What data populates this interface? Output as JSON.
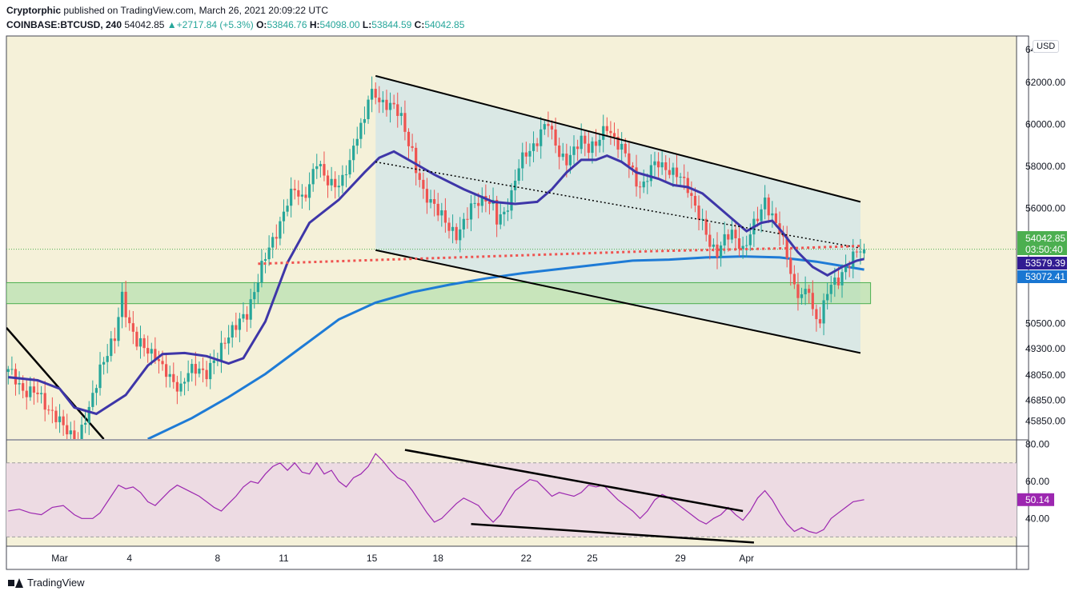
{
  "header": {
    "line1_author": "Cryptorphic",
    "line1_text": " published on TradingView.com, March 26, 2021 20:09:22 UTC",
    "symbol": "COINBASE:BTCUSD, 240",
    "last": "54042.85",
    "change": "+2717.84 (+5.3%)",
    "o_label": "O:",
    "o": "53846.76",
    "h_label": "H:",
    "h": "54098.00",
    "l_label": "L:",
    "l": "53844.59",
    "c_label": "C:",
    "c": "54042.85"
  },
  "currency": "USD",
  "price_axis": [
    "64",
    "62000.00",
    "60000.00",
    "58000.00",
    "56000.00",
    "54042.85",
    "03:50:40",
    "53579.39",
    "53072.41",
    "50500.00",
    "49300.00",
    "48050.00",
    "46850.00",
    "45850.00"
  ],
  "rsi_axis": [
    "80.00",
    "60.00",
    "50.14",
    "40.00"
  ],
  "time_axis": [
    "Mar",
    "4",
    "8",
    "11",
    "15",
    "18",
    "22",
    "25",
    "29",
    "Apr"
  ],
  "footer": {
    "brand": "TradingView"
  },
  "colors": {
    "bg": "#f5f1d9",
    "up": "#26a69a",
    "down": "#ef5350",
    "channel": "#d7e7e5",
    "support": "#b8e0b0",
    "ema_fast": "#3e36a8",
    "ema_slow": "#1e7bd6",
    "rsi_band": "#eddbe3",
    "rsi_line": "#9c27b0",
    "price_tag": "#4caf50",
    "ema_fast_tag": "#311b92",
    "ema_slow_tag": "#1976d2",
    "rsi_tag": "#9c27b0"
  },
  "chart_data": {
    "type": "candlestick",
    "title": "COINBASE:BTCUSD, 240",
    "series": [
      {
        "name": "BTCUSD candles",
        "close_last": 54042.85
      },
      {
        "name": "EMA fast",
        "last": 53579.39
      },
      {
        "name": "EMA slow",
        "last": 53072.41
      },
      {
        "name": "RSI",
        "last": 50.14
      }
    ],
    "ylim": [
      45000,
      64200
    ],
    "rsi_ylim": [
      25,
      82
    ],
    "rsi_band": [
      30,
      70
    ],
    "x_range": [
      "2021-02-25",
      "2021-04-03"
    ],
    "x_ticks": [
      "Mar",
      "4",
      "8",
      "11",
      "15",
      "18",
      "22",
      "25",
      "29",
      "Apr"
    ],
    "path": [
      [
        0,
        48200
      ],
      [
        4,
        47400
      ],
      [
        8,
        47100
      ],
      [
        12,
        46300
      ],
      [
        15,
        45500
      ],
      [
        19,
        45000
      ],
      [
        22,
        46300
      ],
      [
        25,
        48500
      ],
      [
        29,
        49700
      ],
      [
        31,
        51900
      ],
      [
        33,
        50500
      ],
      [
        35,
        49500
      ],
      [
        38,
        49300
      ],
      [
        40,
        49100
      ],
      [
        42,
        48250
      ],
      [
        44,
        47900
      ],
      [
        47,
        47500
      ],
      [
        49,
        48100
      ],
      [
        52,
        48400
      ],
      [
        54,
        48200
      ],
      [
        57,
        48800
      ],
      [
        59,
        49800
      ],
      [
        61,
        50300
      ],
      [
        63,
        50500
      ],
      [
        65,
        50900
      ],
      [
        67,
        52200
      ],
      [
        69,
        53200
      ],
      [
        72,
        54400
      ],
      [
        74,
        55400
      ],
      [
        76,
        56300
      ],
      [
        78,
        56800
      ],
      [
        80,
        56500
      ],
      [
        82,
        57200
      ],
      [
        84,
        58100
      ],
      [
        86,
        57500
      ],
      [
        88,
        57300
      ],
      [
        90,
        57100
      ],
      [
        91,
        57200
      ],
      [
        93,
        58200
      ],
      [
        95,
        59700
      ],
      [
        97,
        60200
      ],
      [
        98,
        61200
      ],
      [
        100,
        61400
      ],
      [
        101,
        61200
      ],
      [
        103,
        61000
      ],
      [
        105,
        60700
      ],
      [
        107,
        60300
      ],
      [
        108,
        59800
      ],
      [
        110,
        58700
      ],
      [
        111,
        57800
      ],
      [
        113,
        56600
      ],
      [
        116,
        56300
      ],
      [
        118,
        55600
      ],
      [
        120,
        54900
      ],
      [
        122,
        54800
      ],
      [
        124,
        55400
      ],
      [
        126,
        55900
      ],
      [
        128,
        56300
      ],
      [
        130,
        56600
      ],
      [
        132,
        56100
      ],
      [
        133,
        55300
      ],
      [
        135,
        55700
      ],
      [
        137,
        56800
      ],
      [
        139,
        58000
      ],
      [
        141,
        58500
      ],
      [
        143,
        59000
      ],
      [
        145,
        59700
      ],
      [
        147,
        60000
      ],
      [
        148,
        59400
      ],
      [
        150,
        58700
      ],
      [
        152,
        58300
      ],
      [
        154,
        58600
      ],
      [
        156,
        59300
      ],
      [
        158,
        59000
      ],
      [
        160,
        59000
      ],
      [
        161,
        59200
      ],
      [
        163,
        59900
      ],
      [
        165,
        59400
      ],
      [
        167,
        58800
      ],
      [
        169,
        58100
      ],
      [
        171,
        57300
      ],
      [
        173,
        57100
      ],
      [
        175,
        57800
      ],
      [
        177,
        58200
      ],
      [
        179,
        58000
      ],
      [
        181,
        57600
      ],
      [
        183,
        57400
      ],
      [
        185,
        57100
      ],
      [
        187,
        56100
      ],
      [
        189,
        55100
      ],
      [
        191,
        54300
      ],
      [
        193,
        54000
      ],
      [
        195,
        54500
      ],
      [
        197,
        54700
      ],
      [
        199,
        54400
      ],
      [
        200,
        54100
      ],
      [
        201,
        54400
      ],
      [
        203,
        55100
      ],
      [
        205,
        55900
      ],
      [
        206,
        56500
      ],
      [
        208,
        55600
      ],
      [
        210,
        54800
      ],
      [
        212,
        53800
      ],
      [
        214,
        52300
      ],
      [
        216,
        51700
      ],
      [
        218,
        52100
      ],
      [
        219,
        51000
      ],
      [
        221,
        50800
      ],
      [
        223,
        52000
      ],
      [
        226,
        52600
      ],
      [
        228,
        53300
      ],
      [
        230,
        53600
      ],
      [
        231,
        53850
      ],
      [
        233,
        54042.85
      ]
    ],
    "ema_fast": [
      [
        0,
        47950
      ],
      [
        8,
        47800
      ],
      [
        14,
        47400
      ],
      [
        18,
        46500
      ],
      [
        24,
        46200
      ],
      [
        32,
        47100
      ],
      [
        38,
        48500
      ],
      [
        42,
        49050
      ],
      [
        48,
        49100
      ],
      [
        54,
        48950
      ],
      [
        60,
        48600
      ],
      [
        64,
        48850
      ],
      [
        70,
        50600
      ],
      [
        76,
        53400
      ],
      [
        82,
        55300
      ],
      [
        90,
        56400
      ],
      [
        97,
        57700
      ],
      [
        101,
        58400
      ],
      [
        105,
        58700
      ],
      [
        110,
        58200
      ],
      [
        116,
        57600
      ],
      [
        124,
        56900
      ],
      [
        132,
        56300
      ],
      [
        138,
        56200
      ],
      [
        144,
        56300
      ],
      [
        148,
        56900
      ],
      [
        152,
        57700
      ],
      [
        156,
        58300
      ],
      [
        160,
        58300
      ],
      [
        163,
        58500
      ],
      [
        167,
        58200
      ],
      [
        171,
        57700
      ],
      [
        177,
        57400
      ],
      [
        181,
        57100
      ],
      [
        185,
        57000
      ],
      [
        189,
        56700
      ],
      [
        193,
        56100
      ],
      [
        197,
        55500
      ],
      [
        201,
        54900
      ],
      [
        205,
        55300
      ],
      [
        208,
        55400
      ],
      [
        211,
        54800
      ],
      [
        215,
        53900
      ],
      [
        219,
        53200
      ],
      [
        223,
        52800
      ],
      [
        227,
        53200
      ],
      [
        231,
        53500
      ],
      [
        233,
        53579.39
      ]
    ],
    "ema_slow": [
      [
        38,
        45000
      ],
      [
        50,
        46000
      ],
      [
        60,
        47000
      ],
      [
        70,
        48100
      ],
      [
        80,
        49400
      ],
      [
        90,
        50700
      ],
      [
        100,
        51500
      ],
      [
        110,
        52000
      ],
      [
        120,
        52350
      ],
      [
        130,
        52650
      ],
      [
        140,
        52900
      ],
      [
        150,
        53100
      ],
      [
        160,
        53300
      ],
      [
        170,
        53500
      ],
      [
        180,
        53550
      ],
      [
        190,
        53650
      ],
      [
        200,
        53700
      ],
      [
        210,
        53650
      ],
      [
        220,
        53450
      ],
      [
        233,
        53072.41
      ]
    ],
    "rsi": [
      [
        0,
        44
      ],
      [
        3,
        45
      ],
      [
        6,
        43
      ],
      [
        9,
        42
      ],
      [
        12,
        46
      ],
      [
        15,
        47
      ],
      [
        18,
        42
      ],
      [
        20,
        40
      ],
      [
        23,
        40
      ],
      [
        25,
        43
      ],
      [
        28,
        52
      ],
      [
        30,
        58
      ],
      [
        32,
        56
      ],
      [
        34,
        57
      ],
      [
        36,
        54
      ],
      [
        38,
        49
      ],
      [
        40,
        47
      ],
      [
        42,
        51
      ],
      [
        44,
        55
      ],
      [
        46,
        58
      ],
      [
        48,
        56
      ],
      [
        50,
        54
      ],
      [
        52,
        52
      ],
      [
        54,
        49
      ],
      [
        56,
        46
      ],
      [
        58,
        44
      ],
      [
        60,
        48
      ],
      [
        62,
        52
      ],
      [
        64,
        57
      ],
      [
        66,
        60
      ],
      [
        68,
        59
      ],
      [
        70,
        64
      ],
      [
        72,
        68
      ],
      [
        74,
        70
      ],
      [
        76,
        66
      ],
      [
        78,
        70
      ],
      [
        80,
        65
      ],
      [
        82,
        64
      ],
      [
        84,
        70
      ],
      [
        86,
        64
      ],
      [
        88,
        66
      ],
      [
        90,
        60
      ],
      [
        92,
        57
      ],
      [
        94,
        62
      ],
      [
        96,
        64
      ],
      [
        98,
        68
      ],
      [
        100,
        75
      ],
      [
        102,
        71
      ],
      [
        104,
        66
      ],
      [
        106,
        62
      ],
      [
        108,
        60
      ],
      [
        110,
        55
      ],
      [
        112,
        49
      ],
      [
        114,
        43
      ],
      [
        116,
        38
      ],
      [
        118,
        40
      ],
      [
        120,
        44
      ],
      [
        122,
        48
      ],
      [
        124,
        51
      ],
      [
        126,
        49
      ],
      [
        128,
        47
      ],
      [
        130,
        42
      ],
      [
        132,
        38
      ],
      [
        134,
        42
      ],
      [
        136,
        49
      ],
      [
        138,
        55
      ],
      [
        140,
        58
      ],
      [
        142,
        61
      ],
      [
        144,
        60
      ],
      [
        146,
        56
      ],
      [
        148,
        52
      ],
      [
        150,
        54
      ],
      [
        152,
        53
      ],
      [
        154,
        52
      ],
      [
        156,
        54
      ],
      [
        158,
        58
      ],
      [
        160,
        57
      ],
      [
        162,
        58
      ],
      [
        164,
        54
      ],
      [
        166,
        50
      ],
      [
        168,
        47
      ],
      [
        170,
        44
      ],
      [
        172,
        40
      ],
      [
        174,
        44
      ],
      [
        176,
        50
      ],
      [
        178,
        53
      ],
      [
        180,
        51
      ],
      [
        182,
        48
      ],
      [
        184,
        45
      ],
      [
        186,
        42
      ],
      [
        188,
        39
      ],
      [
        190,
        37
      ],
      [
        192,
        40
      ],
      [
        194,
        42
      ],
      [
        196,
        46
      ],
      [
        198,
        42
      ],
      [
        200,
        39
      ],
      [
        202,
        44
      ],
      [
        204,
        51
      ],
      [
        206,
        55
      ],
      [
        208,
        50
      ],
      [
        210,
        43
      ],
      [
        212,
        37
      ],
      [
        214,
        33
      ],
      [
        216,
        35
      ],
      [
        218,
        33
      ],
      [
        220,
        32
      ],
      [
        222,
        34
      ],
      [
        224,
        40
      ],
      [
        226,
        43
      ],
      [
        228,
        46
      ],
      [
        230,
        49
      ],
      [
        233,
        50.14
      ]
    ],
    "channel_upper": [
      [
        100,
        62300
      ],
      [
        232,
        56300
      ]
    ],
    "channel_lower": [
      [
        100,
        54000
      ],
      [
        232,
        49100
      ]
    ],
    "midline": [
      [
        100,
        58200
      ],
      [
        232,
        54100
      ]
    ],
    "support_zone": [
      51450,
      52450
    ],
    "resistance_dotted": [
      [
        68,
        53350
      ],
      [
        175,
        53950
      ],
      [
        215,
        54100
      ],
      [
        232,
        54200
      ]
    ],
    "rsi_trend_upper": [
      [
        108,
        77
      ],
      [
        200,
        44
      ]
    ],
    "rsi_trend_lower": [
      [
        126,
        37
      ],
      [
        203,
        27
      ]
    ],
    "tags": {
      "price": 54042.85,
      "countdown": "03:50:40",
      "ema_fast": 53579.39,
      "ema_slow": 53072.41,
      "rsi": 50.14
    }
  }
}
